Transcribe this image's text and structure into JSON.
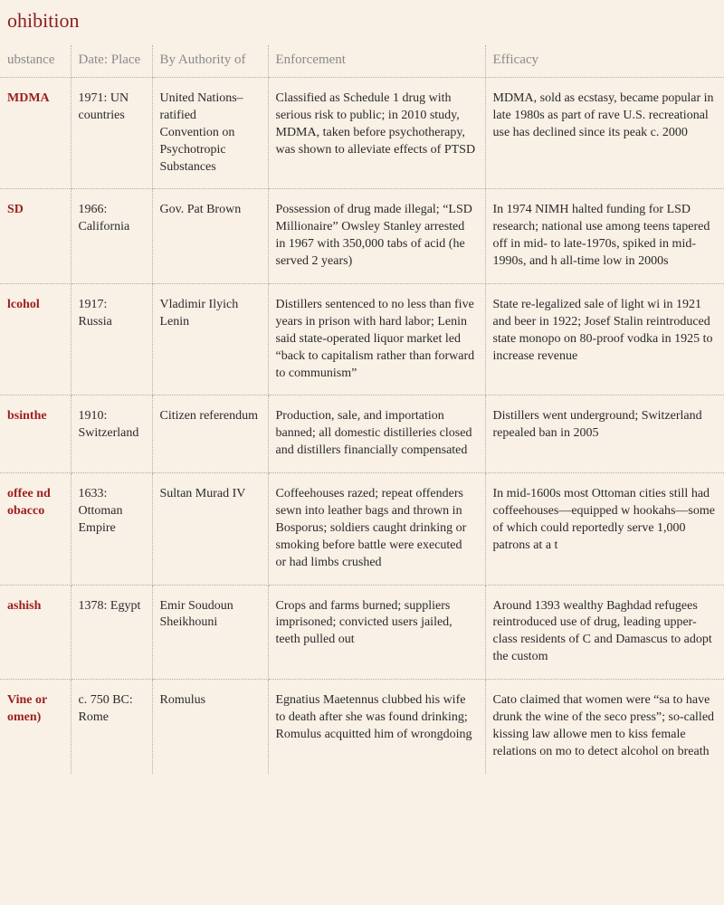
{
  "title": "ohibition",
  "columns": [
    "ubstance",
    "Date: Place",
    "By Authority of",
    "Enforcement",
    "Efficacy"
  ],
  "rows": [
    {
      "substance": "MDMA",
      "date_place": "1971: UN countries",
      "authority": "United Nations–ratified Convention on Psychotropic Substances",
      "enforcement": "Classified as Schedule 1 drug with serious risk to public; in 2010 study, MDMA, taken before psychotherapy, was shown to alleviate effects of PTSD",
      "efficacy": "MDMA, sold as ecstasy, became popular in late 1980s as part of rave U.S. recreational use has declined since its peak c. 2000"
    },
    {
      "substance": "SD",
      "date_place": "1966: California",
      "authority": "Gov. Pat Brown",
      "enforcement": "Possession of drug made illegal; “LSD Millionaire” Owsley Stanley arrested in 1967 with 350,000 tabs of acid (he served 2 years)",
      "efficacy": "In 1974 NIMH halted funding for LSD research; national use among teens tapered off in mid- to late-1970s, spiked in mid-1990s, and h all-time low in 2000s"
    },
    {
      "substance": "lcohol",
      "date_place": "1917: Russia",
      "authority": "Vladimir Ilyich Lenin",
      "enforcement": "Distillers sentenced to no less than five years in prison with hard labor; Lenin said state-operated liquor market led “back to capitalism rather than forward to communism”",
      "efficacy": "State re-legalized sale of light wi in 1921 and beer in 1922; Josef Stalin reintroduced state monopo on 80-proof vodka in 1925 to increase revenue"
    },
    {
      "substance": "bsinthe",
      "date_place": "1910: Switzerland",
      "authority": "Citizen referendum",
      "enforcement": "Production, sale, and importation banned; all domestic distilleries closed and distillers financially compensated",
      "efficacy": "Distillers went underground; Switzerland repealed ban in 2005"
    },
    {
      "substance": "offee nd obacco",
      "date_place": "1633: Ottoman Empire",
      "authority": "Sultan Murad IV",
      "enforcement": "Coffeehouses razed; repeat offenders sewn into leather bags and thrown in Bosporus; soldiers caught drinking or smoking before battle were executed or had limbs crushed",
      "efficacy": "In mid-1600s most Ottoman cities still had coffeehouses—equipped w hookahs—some of which could reportedly serve 1,000 patrons at a t"
    },
    {
      "substance": "ashish",
      "date_place": "1378: Egypt",
      "authority": "Emir Soudoun Sheikhouni",
      "enforcement": "Crops and farms burned; suppliers imprisoned; convicted users jailed, teeth pulled out",
      "efficacy": "Around 1393 wealthy Baghdad refugees reintroduced use of drug, leading upper-class residents of C and Damascus to adopt the custom"
    },
    {
      "substance": "Vine or omen)",
      "date_place": "c. 750 BC: Rome",
      "authority": "Romulus",
      "enforcement": "Egnatius Maetennus clubbed his wife to death after she was found drinking; Romulus acquitted him of wrongdoing",
      "efficacy": "Cato claimed that women were “sa to have drunk the wine of the seco press”; so-called kissing law allowe men to kiss female relations on mo to detect alcohol on breath"
    }
  ]
}
